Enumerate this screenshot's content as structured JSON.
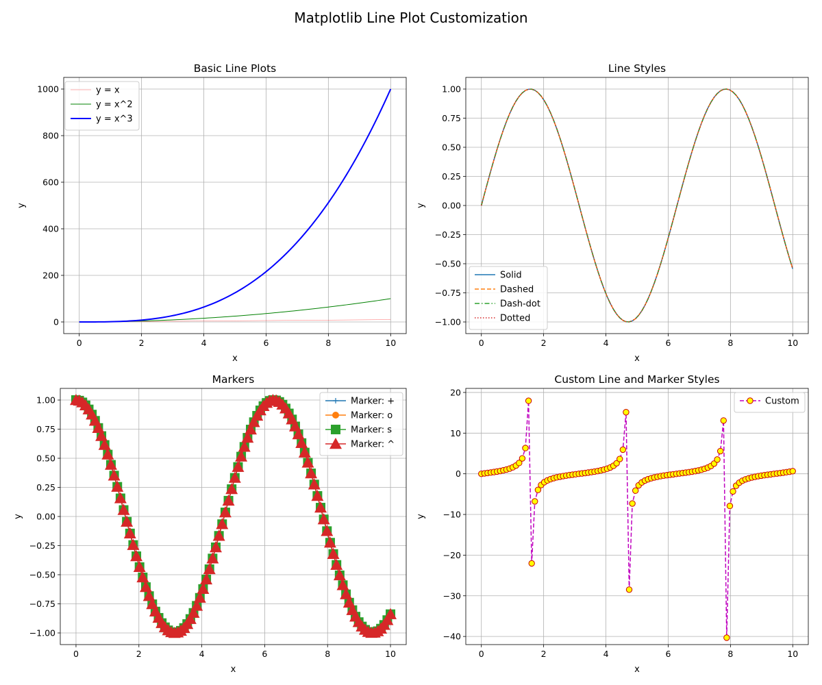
{
  "figure": {
    "suptitle": "Matplotlib Line Plot Customization"
  },
  "chart_data": [
    {
      "type": "line",
      "title": "Basic Line Plots",
      "xlabel": "x",
      "ylabel": "y",
      "xlim": [
        -0.5,
        10.5
      ],
      "ylim": [
        -50,
        1050
      ],
      "xticks": [
        0,
        2,
        4,
        6,
        8,
        10
      ],
      "yticks": [
        0,
        200,
        400,
        600,
        800,
        1000
      ],
      "grid": true,
      "legend": "top-left",
      "series": [
        {
          "name": "y = x",
          "func": "x",
          "color": "#ff0000",
          "lineWidth": 0.5,
          "dash": "solid",
          "alpha": 0.6
        },
        {
          "name": "y = x^2",
          "func": "x2",
          "color": "#008000",
          "lineWidth": 1,
          "dash": "solid"
        },
        {
          "name": "y = x^3",
          "func": "x3",
          "color": "#0000ff",
          "lineWidth": 2,
          "dash": "solid"
        }
      ],
      "x_sample": {
        "start": 0,
        "end": 10,
        "count": 100
      }
    },
    {
      "type": "line",
      "title": "Line Styles",
      "xlabel": "x",
      "ylabel": "y",
      "xlim": [
        -0.5,
        10.5
      ],
      "ylim": [
        -1.1,
        1.1
      ],
      "xticks": [
        0,
        2,
        4,
        6,
        8,
        10
      ],
      "yticks": [
        -1.0,
        -0.75,
        -0.5,
        -0.25,
        0.0,
        0.25,
        0.5,
        0.75,
        1.0
      ],
      "ytick_labels": [
        "−1.00",
        "−0.75",
        "−0.50",
        "−0.25",
        "0.00",
        "0.25",
        "0.50",
        "0.75",
        "1.00"
      ],
      "grid": true,
      "legend": "bottom-left",
      "series": [
        {
          "name": "Solid",
          "func": "sin",
          "color": "#1f77b4",
          "lineWidth": 1.5,
          "dash": "solid"
        },
        {
          "name": "Dashed",
          "func": "sin",
          "color": "#ff7f0e",
          "lineWidth": 1.5,
          "dash": "dashed"
        },
        {
          "name": "Dash-dot",
          "func": "sin",
          "color": "#2ca02c",
          "lineWidth": 1.5,
          "dash": "dashdot"
        },
        {
          "name": "Dotted",
          "func": "sin",
          "color": "#d62728",
          "lineWidth": 1.5,
          "dash": "dotted"
        }
      ],
      "x_sample": {
        "start": 0,
        "end": 10,
        "count": 100
      }
    },
    {
      "type": "line",
      "title": "Markers",
      "xlabel": "x",
      "ylabel": "y",
      "xlim": [
        -0.5,
        10.5
      ],
      "ylim": [
        -1.1,
        1.1
      ],
      "xticks": [
        0,
        2,
        4,
        6,
        8,
        10
      ],
      "yticks": [
        -1.0,
        -0.75,
        -0.5,
        -0.25,
        0.0,
        0.25,
        0.5,
        0.75,
        1.0
      ],
      "ytick_labels": [
        "−1.00",
        "−0.75",
        "−0.50",
        "−0.25",
        "0.00",
        "0.25",
        "0.50",
        "0.75",
        "1.00"
      ],
      "grid": true,
      "legend": "top-right",
      "series": [
        {
          "name": "Marker: +",
          "func": "cos",
          "color": "#1f77b4",
          "lineWidth": 1.5,
          "dash": "solid",
          "marker": "+"
        },
        {
          "name": "Marker: o",
          "func": "cos",
          "color": "#ff7f0e",
          "lineWidth": 1.5,
          "dash": "solid",
          "marker": "o"
        },
        {
          "name": "Marker: s",
          "func": "cos",
          "color": "#2ca02c",
          "lineWidth": 1.5,
          "dash": "solid",
          "marker": "s"
        },
        {
          "name": "Marker: ^",
          "func": "cos",
          "color": "#d62728",
          "lineWidth": 1.5,
          "dash": "solid",
          "marker": "^"
        }
      ],
      "x_sample": {
        "start": 0,
        "end": 10,
        "count": 100
      }
    },
    {
      "type": "line",
      "title": "Custom Line and Marker Styles",
      "xlabel": "x",
      "ylabel": "y",
      "xlim": [
        -0.5,
        10.5
      ],
      "ylim": [
        -42,
        21
      ],
      "xticks": [
        0,
        2,
        4,
        6,
        8,
        10
      ],
      "yticks": [
        -40,
        -30,
        -20,
        -10,
        0,
        10,
        20
      ],
      "ytick_labels": [
        "−40",
        "−30",
        "−20",
        "−10",
        "0",
        "10",
        "20"
      ],
      "grid": true,
      "legend": "top-right",
      "series": [
        {
          "name": "Custom",
          "func": "tan",
          "color": "#bf00bf",
          "lineWidth": 1.5,
          "dash": "dashed",
          "marker": "o",
          "markerFace": "#ffff00",
          "markerEdge": "#cc0000"
        }
      ],
      "x_sample": {
        "start": 0,
        "end": 10,
        "count": 100
      }
    }
  ]
}
